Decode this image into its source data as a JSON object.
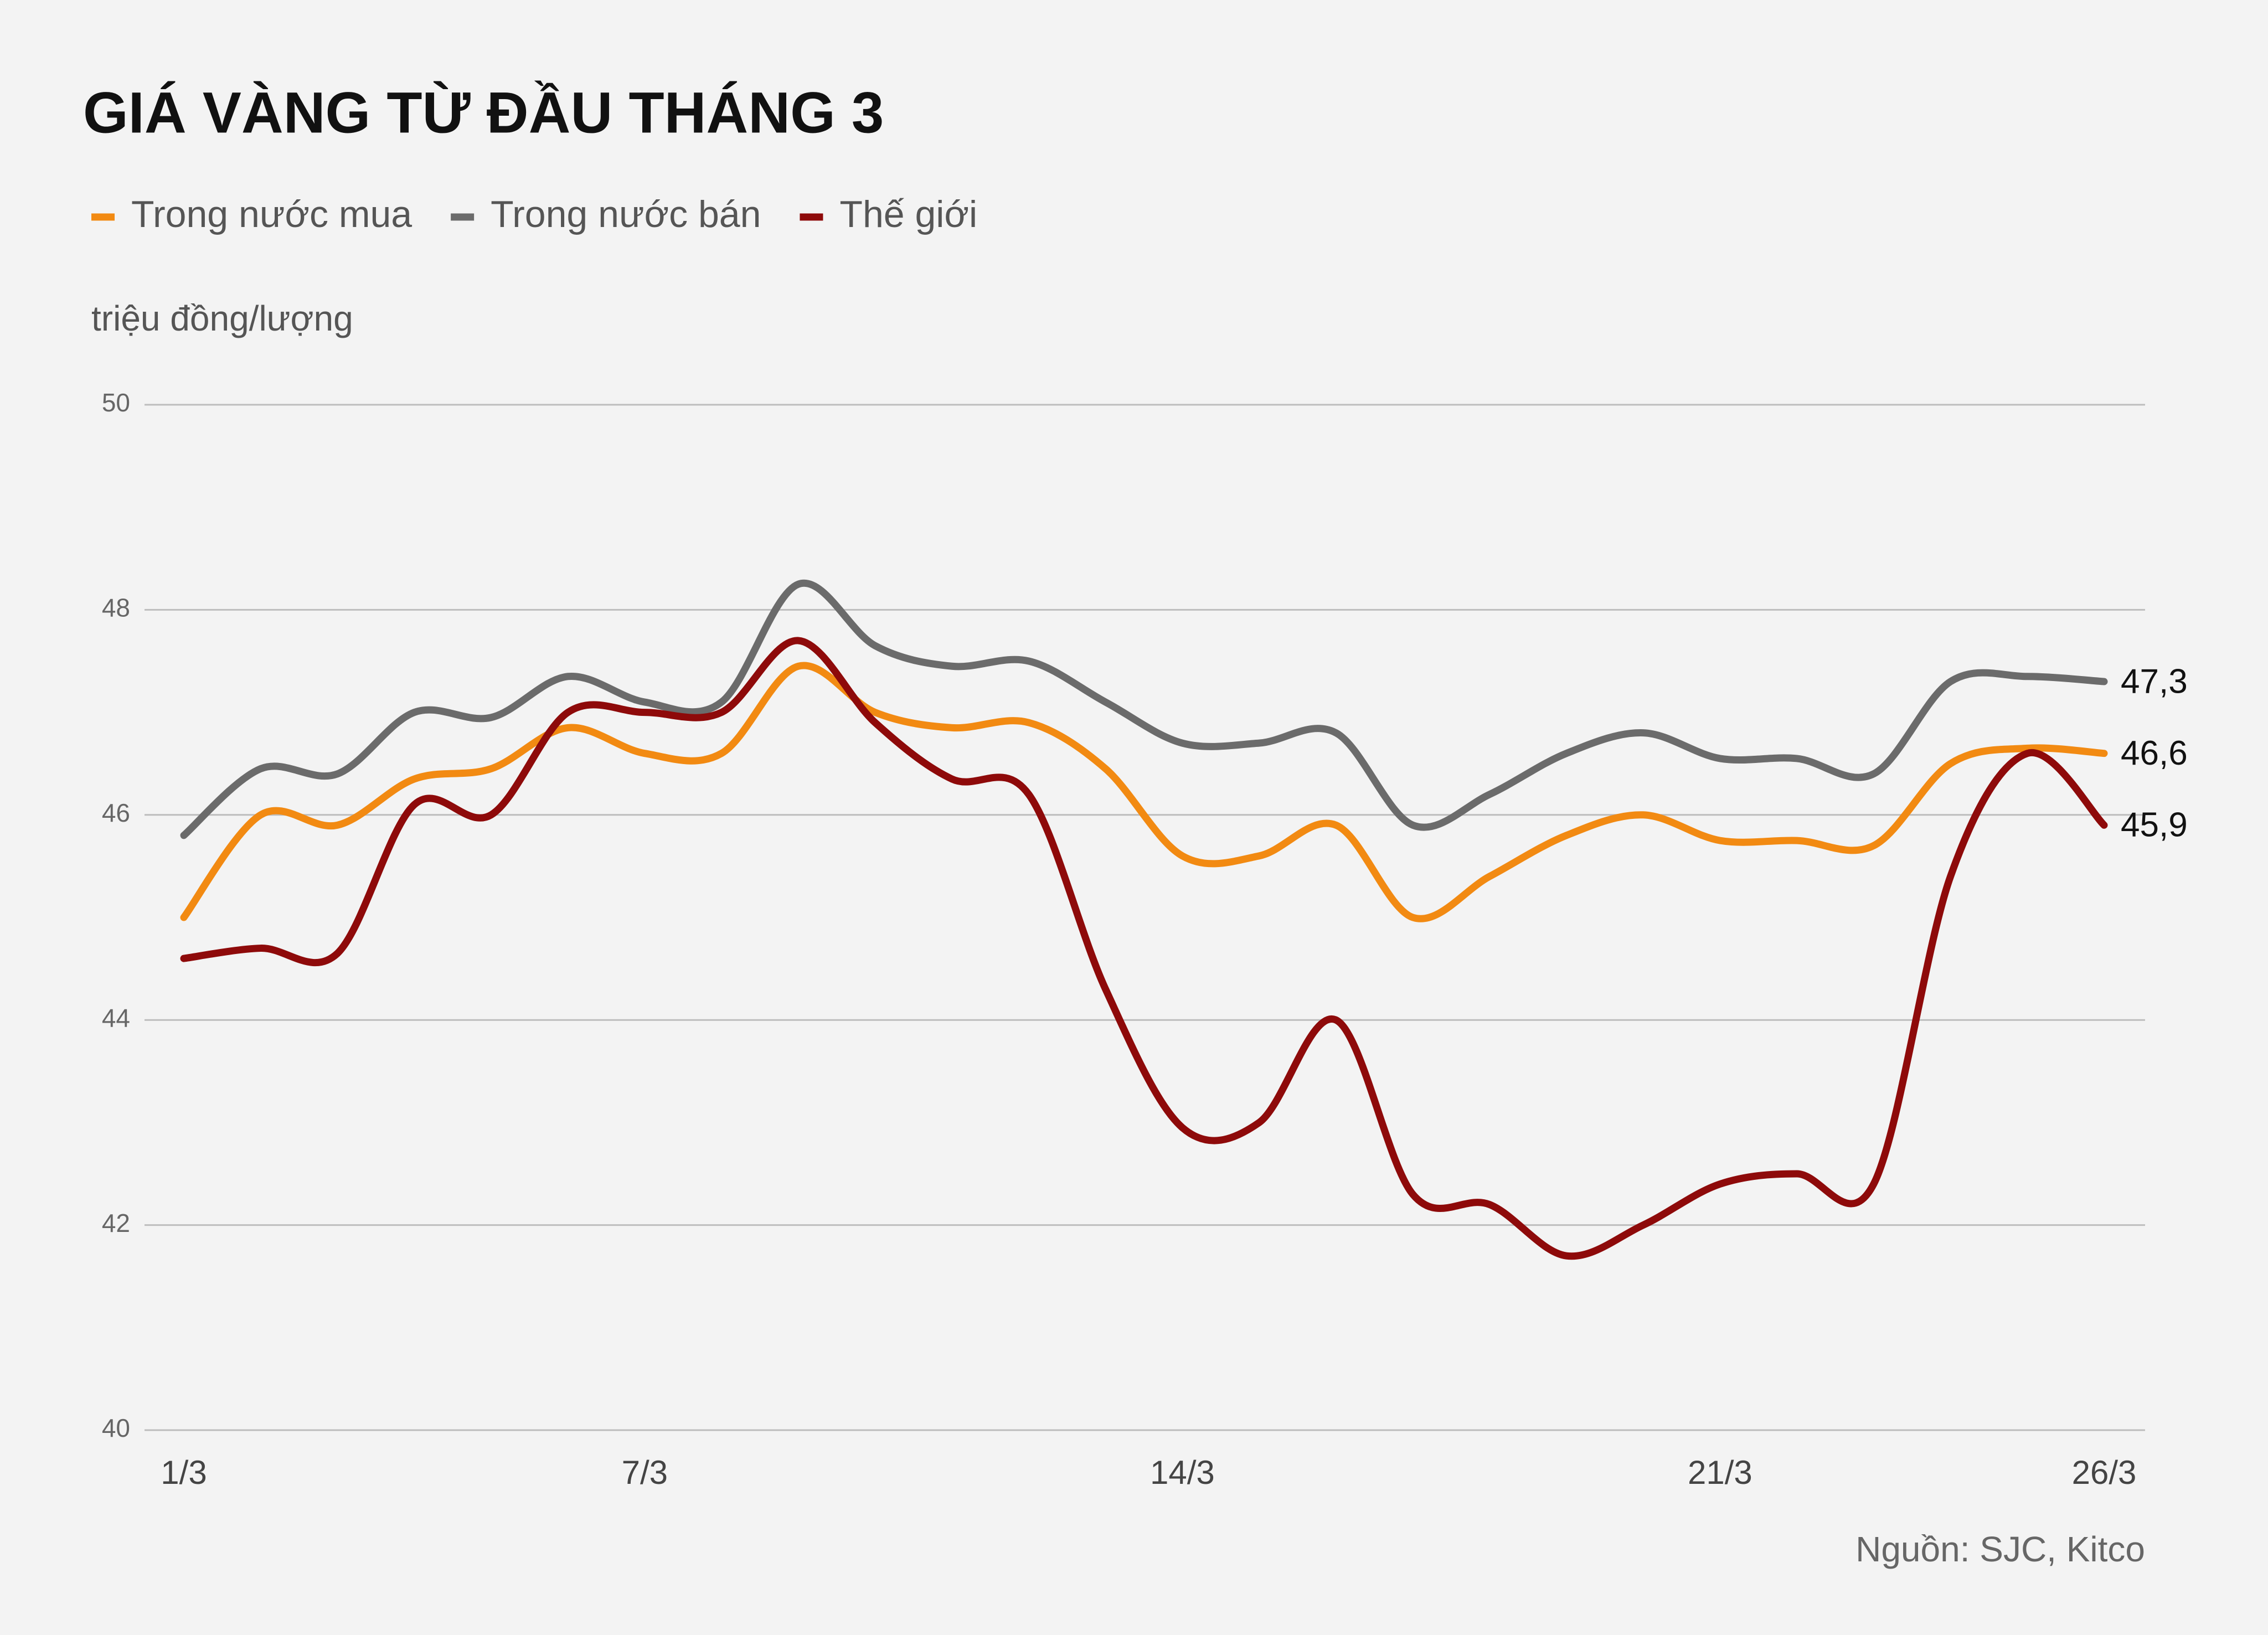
{
  "chart_data": {
    "type": "line",
    "title": "GIÁ VÀNG TỪ ĐẦU THÁNG 3",
    "y_label": "triệu đồng/lượng",
    "source": "Nguồn: SJC, Kitco",
    "categories": [
      "1/3",
      null,
      null,
      null,
      null,
      null,
      "7/3",
      null,
      null,
      null,
      null,
      null,
      null,
      "14/3",
      null,
      null,
      null,
      null,
      null,
      null,
      "21/3",
      null,
      null,
      null,
      null,
      "26/3"
    ],
    "series": [
      {
        "name": "Trong nước mua",
        "color": "#f28a12",
        "values": [
          45.0,
          46.0,
          45.9,
          46.35,
          46.45,
          46.85,
          46.6,
          46.6,
          47.45,
          47.0,
          46.85,
          46.9,
          46.45,
          45.6,
          45.6,
          45.9,
          45.0,
          45.4,
          45.8,
          46.0,
          45.75,
          45.75,
          45.7,
          46.5,
          46.65,
          46.6
        ],
        "value_labels": [
          null,
          null,
          null,
          null,
          null,
          null,
          null,
          null,
          null,
          null,
          null,
          null,
          null,
          null,
          null,
          null,
          null,
          null,
          null,
          null,
          null,
          null,
          null,
          null,
          null,
          "46,6"
        ]
      },
      {
        "name": "Trong nước bán",
        "color": "#6b6b6b",
        "values": [
          45.8,
          46.45,
          46.4,
          47.0,
          46.95,
          47.35,
          47.1,
          47.1,
          48.25,
          47.65,
          47.45,
          47.5,
          47.1,
          46.7,
          46.7,
          46.8,
          45.9,
          46.2,
          46.6,
          46.8,
          46.55,
          46.55,
          46.4,
          47.3,
          47.35,
          47.3
        ],
        "value_labels": [
          null,
          null,
          null,
          null,
          null,
          null,
          null,
          null,
          null,
          null,
          null,
          null,
          null,
          null,
          null,
          null,
          null,
          null,
          null,
          null,
          null,
          null,
          null,
          null,
          null,
          "47,3"
        ]
      },
      {
        "name": "Thế giới",
        "color": "#8e0a0a",
        "values": [
          44.6,
          44.7,
          44.65,
          46.1,
          46.0,
          47.0,
          47.0,
          47.0,
          47.7,
          46.9,
          46.35,
          46.2,
          44.3,
          42.95,
          43.0,
          44.0,
          42.3,
          42.2,
          41.7,
          42.0,
          42.4,
          42.5,
          42.4,
          45.4,
          46.6,
          45.9
        ],
        "value_labels": [
          null,
          null,
          null,
          null,
          null,
          null,
          null,
          null,
          null,
          null,
          null,
          null,
          null,
          null,
          null,
          null,
          null,
          null,
          null,
          null,
          null,
          null,
          null,
          null,
          null,
          "45,9"
        ]
      }
    ],
    "ylim": [
      40,
      50
    ],
    "yticks": [
      40,
      42,
      44,
      46,
      48,
      50
    ],
    "grid": true
  }
}
